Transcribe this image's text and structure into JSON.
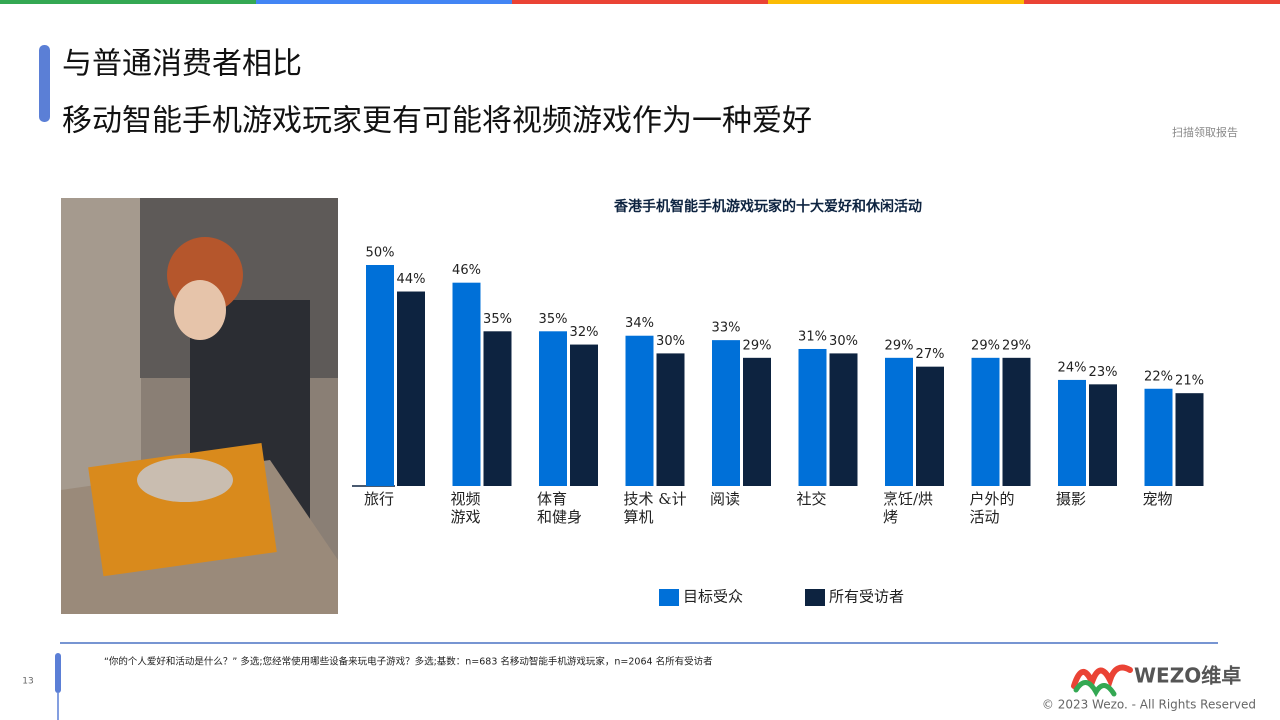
{
  "header": {
    "title_line1": "与普通消费者相比",
    "title_line2": "移动智能手机游戏玩家更有可能将视频游戏作为一种爱好",
    "scan_note": "扫描领取报告"
  },
  "chart_data": {
    "type": "bar",
    "title": "香港手机智能手机游戏玩家的十大爱好和休闲活动",
    "categories": [
      [
        "旅行"
      ],
      [
        "视频",
        "游戏"
      ],
      [
        "体育",
        "和健身"
      ],
      [
        "技术 &计",
        "算机"
      ],
      [
        "阅读"
      ],
      [
        "社交"
      ],
      [
        "烹饪/烘",
        "烤"
      ],
      [
        "户外的",
        "活动"
      ],
      [
        "摄影"
      ],
      [
        "宠物"
      ]
    ],
    "series": [
      {
        "name": "目标受众",
        "color": "#0070d8",
        "values": [
          50,
          46,
          35,
          34,
          33,
          31,
          29,
          29,
          24,
          22
        ],
        "value_labels": [
          "50%",
          "46%",
          "35%",
          "34%",
          "33%",
          "31%",
          "29%",
          "29%",
          "24%",
          "22%"
        ]
      },
      {
        "name": "所有受访者",
        "color": "#0d2340",
        "values": [
          44,
          35,
          32,
          30,
          29,
          30,
          27,
          29,
          23,
          21
        ],
        "value_labels": [
          "44%",
          "35%",
          "32%",
          "30%",
          "29%",
          "30%",
          "27%",
          "29%",
          "23%",
          "21%"
        ]
      }
    ]
  },
  "footer": {
    "page_number": "13",
    "footnote": "“你的个人爱好和活动是什么？” 多选;您经常使用哪些设备来玩电子游戏？多选;基数：n=683 名移动智能手机游戏玩家，n=2064 名所有受访者",
    "logo": "WEZO维卓",
    "copyright": "© 2023 Wezo. - All Rights Reserved"
  }
}
